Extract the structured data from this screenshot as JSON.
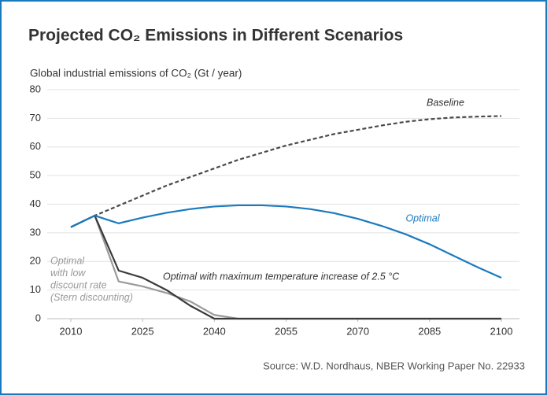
{
  "chart_data": {
    "type": "line",
    "title": "Projected CO₂ Emissions in Different Scenarios",
    "y_label": "Global industrial emissions of CO₂ (Gt / year)",
    "source": "Source: W.D. Nordhaus, NBER Working Paper No. 22933",
    "x": [
      2010,
      2015,
      2020,
      2025,
      2030,
      2035,
      2040,
      2045,
      2050,
      2055,
      2060,
      2065,
      2070,
      2075,
      2080,
      2085,
      2090,
      2095,
      2100
    ],
    "xlim": [
      2010,
      2100
    ],
    "xticks": [
      2010,
      2025,
      2040,
      2055,
      2070,
      2085,
      2100
    ],
    "ylim": [
      0,
      80
    ],
    "yticks": [
      0,
      10,
      20,
      30,
      40,
      50,
      60,
      70,
      80
    ],
    "grid": true,
    "series": [
      {
        "name": "Baseline",
        "color": "#4a4a4a",
        "dashed": true,
        "values": [
          32,
          36,
          39.5,
          43,
          46.5,
          49.5,
          52.5,
          55.5,
          58,
          60.5,
          62.5,
          64.5,
          66,
          67.5,
          68.8,
          69.7,
          70.3,
          70.6,
          70.8
        ]
      },
      {
        "name": "Optimal",
        "color": "#1a7abf",
        "values": [
          32,
          36,
          33.3,
          35.3,
          37,
          38.3,
          39.2,
          39.6,
          39.6,
          39.2,
          38.3,
          36.9,
          34.9,
          32.4,
          29.5,
          26,
          22,
          18,
          14.3
        ]
      },
      {
        "name": "Optimal with maximum temperature increase of 2.5 °C",
        "color": "#3a3a3a",
        "values": [
          32,
          36,
          16.8,
          14.3,
          10,
          4.5,
          0,
          0,
          0,
          0,
          0,
          0,
          0,
          0,
          0,
          0,
          0,
          0,
          0
        ]
      },
      {
        "name_lines": [
          "Optimal",
          "with low",
          "discount rate",
          "(Stern discounting)"
        ],
        "color": "#9a9a9a",
        "values": [
          32,
          36,
          13,
          11.3,
          9,
          6,
          1.3,
          0,
          0,
          0,
          0,
          0,
          0,
          0,
          0,
          0,
          0,
          0,
          0
        ]
      }
    ]
  }
}
